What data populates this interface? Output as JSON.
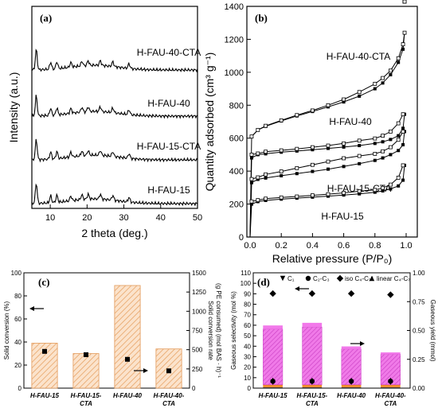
{
  "chart_data": [
    {
      "panel": "(a)",
      "type": "line",
      "xlabel": "2 theta (deg.)",
      "ylabel": "Intensity (a.u.)",
      "xlim": [
        5,
        50
      ],
      "xticks": [
        "10",
        "20",
        "30",
        "40",
        "50"
      ],
      "series": [
        {
          "name": "H-FAU-40-CTA",
          "peaks": [
            6.2,
            10.1,
            11.8,
            15.6,
            18.6,
            20.3,
            23.6,
            27.0,
            31.4
          ]
        },
        {
          "name": "H-FAU-40",
          "peaks": [
            6.2,
            10.1,
            11.8,
            15.6,
            18.6,
            20.3,
            23.6,
            27.0,
            31.4
          ]
        },
        {
          "name": "H-FAU-15-CTA",
          "peaks": [
            6.2,
            10.1,
            11.8,
            15.6,
            18.6,
            20.3,
            23.6,
            27.0,
            31.4
          ]
        },
        {
          "name": "H-FAU-15",
          "peaks": [
            6.2,
            10.1,
            11.8,
            15.6,
            18.6,
            20.3,
            23.6,
            27.0,
            31.4
          ]
        }
      ]
    },
    {
      "panel": "(b)",
      "type": "line",
      "xlabel": "Relative pressure (P/P₀)",
      "ylabel": "Quantity adsorbed (cm³ g⁻¹)",
      "xlim": [
        0,
        1.0
      ],
      "ylim": [
        0,
        1400
      ],
      "xticks": [
        "0.0",
        "0.2",
        "0.4",
        "0.6",
        "0.8",
        "1.0"
      ],
      "yticks": [
        "0",
        "200",
        "400",
        "600",
        "800",
        "1000",
        "1200",
        "1400"
      ],
      "series": [
        {
          "name": "H-FAU-40-CTA",
          "x": [
            0.0,
            0.01,
            0.05,
            0.1,
            0.2,
            0.3,
            0.4,
            0.5,
            0.6,
            0.7,
            0.8,
            0.85,
            0.9,
            0.95,
            0.98,
            0.99
          ],
          "adsorption": [
            0,
            610,
            650,
            672,
            705,
            735,
            762,
            790,
            820,
            855,
            900,
            935,
            985,
            1060,
            1140,
            1240
          ],
          "desorption": [
            610,
            650,
            675,
            708,
            740,
            768,
            800,
            835,
            880,
            930,
            965,
            1010,
            1085,
            1170,
            1240
          ]
        },
        {
          "name": "H-FAU-40",
          "x": [
            0.0,
            0.01,
            0.05,
            0.1,
            0.2,
            0.3,
            0.4,
            0.5,
            0.6,
            0.7,
            0.8,
            0.85,
            0.9,
            0.95,
            0.98,
            0.99
          ],
          "adsorption": [
            0,
            480,
            500,
            505,
            515,
            522,
            530,
            538,
            546,
            555,
            568,
            578,
            592,
            615,
            660,
            745
          ],
          "desorption": [
            500,
            507,
            518,
            526,
            535,
            545,
            555,
            568,
            585,
            598,
            615,
            640,
            690,
            745
          ]
        },
        {
          "name": "H-FAU-15-CTA",
          "x": [
            0.0,
            0.01,
            0.05,
            0.1,
            0.2,
            0.3,
            0.4,
            0.5,
            0.6,
            0.7,
            0.8,
            0.85,
            0.9,
            0.95,
            0.98,
            0.99
          ],
          "adsorption": [
            0,
            330,
            350,
            358,
            372,
            385,
            398,
            412,
            428,
            445,
            465,
            480,
            500,
            525,
            560,
            640
          ],
          "desorption": [
            352,
            362,
            380,
            398,
            418,
            438,
            458,
            478,
            492,
            505,
            520,
            545,
            590,
            640
          ]
        },
        {
          "name": "H-FAU-15",
          "x": [
            0.0,
            0.01,
            0.05,
            0.1,
            0.2,
            0.3,
            0.4,
            0.5,
            0.6,
            0.7,
            0.8,
            0.85,
            0.9,
            0.95,
            0.98,
            0.99
          ],
          "adsorption": [
            0,
            200,
            215,
            222,
            230,
            236,
            242,
            248,
            255,
            262,
            272,
            280,
            292,
            310,
            345,
            435
          ],
          "desorption": [
            216,
            224,
            233,
            240,
            246,
            253,
            260,
            268,
            278,
            286,
            298,
            318,
            360,
            435
          ]
        }
      ]
    },
    {
      "panel": "(c)",
      "type": "bar",
      "categories": [
        "H-FAU-15",
        "H-FAU-15-\nCTA",
        "H-FAU-40",
        "H-FAU-40-\nCTA"
      ],
      "series": [
        {
          "values": [
            39,
            30,
            89,
            34
          ]
        },
        {
          "values": [
            478,
            435,
            375,
            225
          ]
        }
      ],
      "ylabel": "Solid conversion (%)",
      "ylim": [
        0,
        100
      ],
      "yticks": [
        "0",
        "20",
        "40",
        "60",
        "80",
        "100"
      ],
      "y2label": "Solid conversion rate\n(g PE consumed) (mol BAS · h)⁻¹",
      "y2lim": [
        0,
        1500
      ],
      "y2ticks": [
        "0",
        "250",
        "500",
        "750",
        "1000",
        "1250",
        "1500"
      ]
    },
    {
      "panel": "(d)",
      "type": "bar",
      "categories": [
        "H-FAU-15",
        "H-FAU-15-\nCTA",
        "H-FAU-40",
        "H-FAU-40-\nCTA"
      ],
      "legend": [
        "C₁",
        "C₂-C₃",
        "iso C₄-C₇*",
        "linear C₄-C₇"
      ],
      "series": [
        {
          "name": "C₁",
          "values": [
            0.8,
            0.8,
            0.8,
            0.8
          ]
        },
        {
          "name": "C₂-C₃",
          "values": [
            2.5,
            2.5,
            2.5,
            2.5
          ]
        },
        {
          "name": "iso C₄-C₇*",
          "values": [
            53,
            55,
            34,
            29
          ]
        },
        {
          "name": "linear C₄-C₇",
          "values": [
            3.5,
            4.0,
            2.5,
            1.8
          ]
        }
      ],
      "markers": [
        {
          "name": "C₁",
          "values": [
            0.05,
            0.05,
            0.05,
            0.05
          ]
        },
        {
          "name": "C₂-C₃",
          "values": [
            0.06,
            0.06,
            0.06,
            0.06
          ]
        },
        {
          "name": "iso C₄-C₇*",
          "values": [
            0.82,
            0.82,
            0.82,
            0.81
          ]
        },
        {
          "name": "linear C₄-C₇",
          "values": [
            0.07,
            0.07,
            0.07,
            0.07
          ]
        }
      ],
      "ylabel": "Gaseous selectivity (mol %)",
      "ylim": [
        0,
        110
      ],
      "yticks": [
        "0",
        "10",
        "20",
        "30",
        "40",
        "50",
        "60",
        "70",
        "80",
        "90",
        "100",
        "110"
      ],
      "y2label": "Gaseous yield (mmol)",
      "y2lim": [
        0,
        1.0
      ],
      "y2ticks": [
        "0.00",
        "0.25",
        "0.50",
        "0.75",
        "1.00"
      ]
    }
  ]
}
